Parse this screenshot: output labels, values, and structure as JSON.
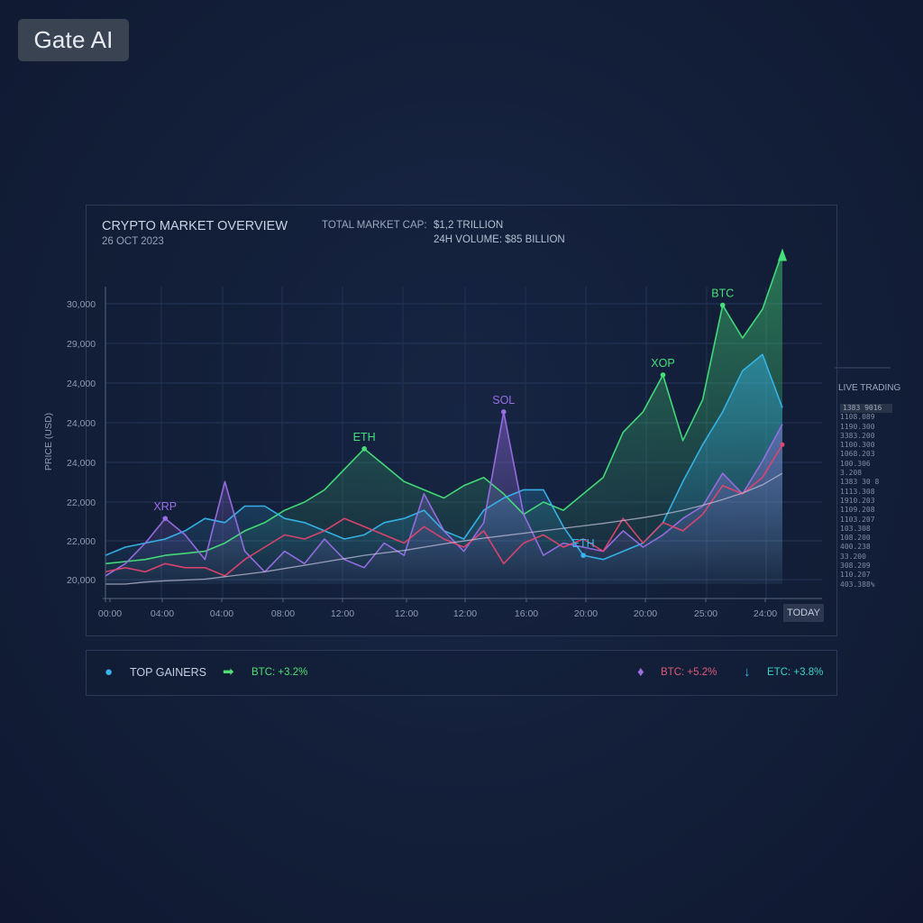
{
  "brand": {
    "label": "Gate AI"
  },
  "header": {
    "title": "CRYPTO MARKET OVERVIEW",
    "date": "26 OCT 2023",
    "market_cap_label": "TOTAL MARKET CAP:",
    "market_cap_value": "$1,2 TRILLION",
    "volume": "24H VOLUME: $85 BILLION"
  },
  "today_label": "TODAY",
  "live_trading": {
    "title": "LIVE TRADING",
    "rows": [
      "1383 9016",
      "1108.089",
      "1190.300",
      "3383.200",
      "1100.300",
      "1068.203",
      "100.306",
      "3.208",
      "1383 30 8",
      "1113.308",
      "1910.203",
      "1109.208",
      "1103.207",
      "103.308",
      "108.200",
      "400.238",
      "33.200",
      "308.209",
      "110.207",
      "403.388%"
    ]
  },
  "gainers": {
    "title": "TOP GAINERS",
    "items": [
      {
        "icon": "bitcoin-icon",
        "arrow": "arrow-right-icon",
        "text": "BTC: +3.2%",
        "color": "#4ee070",
        "icon_color": "#3bb3e8",
        "arrow_color": "#4ee070"
      },
      {
        "icon": "coin-icon",
        "text": "BTC: +5.2%",
        "color": "#e05a7a",
        "icon_color": "#9b6ee0"
      },
      {
        "icon": "arrow-down-icon",
        "text": "ETC: +3.8%",
        "color": "#3bd4c6",
        "icon_color": "#3bb3e8"
      }
    ]
  },
  "chart_data": {
    "type": "line",
    "title": "CRYPTO MARKET OVERVIEW",
    "xlabel": "",
    "ylabel": "PRICE (USD)",
    "y_tick_labels": [
      "30,000",
      "29,000",
      "24,000",
      "24,000",
      "24,000",
      "22,000",
      "22,000",
      "20,000"
    ],
    "x_tick_labels": [
      "00:00",
      "04:00",
      "04:00",
      "08:00",
      "12:00",
      "12:00",
      "12:00",
      "16:00",
      "20:00",
      "20:00",
      "25:00",
      "24:00"
    ],
    "ylim": [
      0,
      7.4
    ],
    "grid": true,
    "series": [
      {
        "name": "green",
        "color": "#46e07a",
        "fill": true,
        "values": [
          0.5,
          0.55,
          0.6,
          0.7,
          0.75,
          0.8,
          1.0,
          1.3,
          1.5,
          1.8,
          2.0,
          2.3,
          2.8,
          3.3,
          2.9,
          2.5,
          2.3,
          2.1,
          2.4,
          2.6,
          2.2,
          1.7,
          2.0,
          1.8,
          2.2,
          2.6,
          3.7,
          4.2,
          5.1,
          3.5,
          4.5,
          6.8,
          6.0,
          6.7,
          8.1
        ]
      },
      {
        "name": "blue",
        "color": "#36b6ec",
        "fill": true,
        "values": [
          0.7,
          0.9,
          1.0,
          1.1,
          1.3,
          1.6,
          1.5,
          1.9,
          1.9,
          1.6,
          1.5,
          1.3,
          1.1,
          1.2,
          1.5,
          1.6,
          1.8,
          1.3,
          1.1,
          1.8,
          2.1,
          2.3,
          2.3,
          1.4,
          0.7,
          0.6,
          0.8,
          1.0,
          1.5,
          2.5,
          3.4,
          4.2,
          5.2,
          5.6,
          4.3
        ]
      },
      {
        "name": "purple",
        "color": "#9a6ee6",
        "fill": true,
        "values": [
          0.2,
          0.5,
          1.0,
          1.6,
          1.2,
          0.6,
          2.5,
          0.8,
          0.3,
          0.8,
          0.5,
          1.1,
          0.6,
          0.4,
          1.0,
          0.7,
          2.2,
          1.3,
          0.8,
          1.5,
          4.2,
          1.7,
          0.7,
          1.0,
          0.9,
          0.8,
          1.3,
          0.9,
          1.2,
          1.6,
          1.9,
          2.7,
          2.2,
          3.0,
          3.9
        ]
      },
      {
        "name": "red",
        "color": "#e0456e",
        "fill": false,
        "values": [
          0.3,
          0.4,
          0.3,
          0.5,
          0.4,
          0.4,
          0.2,
          0.6,
          0.9,
          1.2,
          1.1,
          1.3,
          1.6,
          1.4,
          1.2,
          1.0,
          1.4,
          1.1,
          0.9,
          1.3,
          0.5,
          1.0,
          1.2,
          0.9,
          1.1,
          0.8,
          1.6,
          1.0,
          1.5,
          1.3,
          1.7,
          2.4,
          2.2,
          2.6,
          3.4
        ]
      },
      {
        "name": "trend",
        "color": "#c2bed8",
        "fill": false,
        "values": [
          0.0,
          0.0,
          0.05,
          0.08,
          0.1,
          0.12,
          0.18,
          0.24,
          0.3,
          0.38,
          0.46,
          0.54,
          0.62,
          0.7,
          0.76,
          0.82,
          0.9,
          0.98,
          1.05,
          1.12,
          1.18,
          1.24,
          1.3,
          1.36,
          1.42,
          1.48,
          1.55,
          1.62,
          1.7,
          1.8,
          1.92,
          2.06,
          2.22,
          2.42,
          2.7
        ]
      }
    ],
    "annotations": [
      {
        "text": "XRP",
        "series": "purple",
        "index": 3,
        "color": "#9a6ee6"
      },
      {
        "text": "ETH",
        "series": "green",
        "index": 13,
        "color": "#46e07a"
      },
      {
        "text": "SOL",
        "series": "purple",
        "index": 20,
        "color": "#9a6ee6"
      },
      {
        "text": "ETH",
        "series": "blue",
        "index": 24,
        "color": "#36b6ec"
      },
      {
        "text": "XOP",
        "series": "green",
        "index": 28,
        "color": "#46e07a"
      },
      {
        "text": "BTC",
        "series": "green",
        "index": 31,
        "color": "#46e07a"
      }
    ]
  }
}
